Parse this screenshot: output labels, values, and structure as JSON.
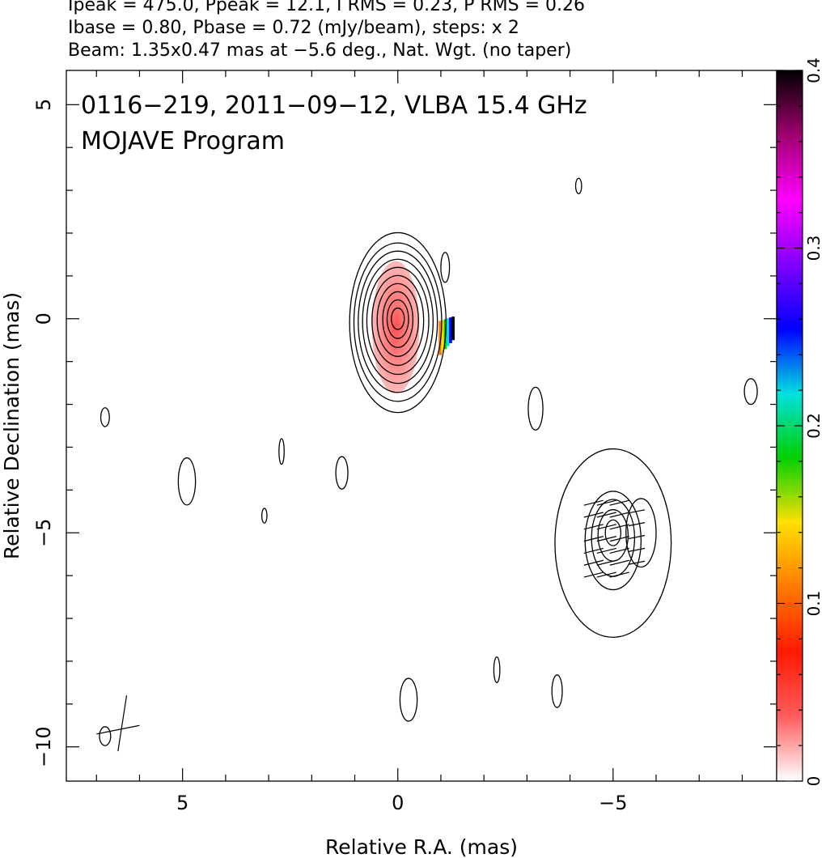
{
  "header": {
    "line1": "Ipeak = 475.0, Ppeak = 12.1, I RMS = 0.23, P RMS = 0.26",
    "line2": "Ibase = 0.80, Pbase = 0.72 (mJy/beam), steps: x 2",
    "line3": "Beam: 1.35x0.47 mas at −5.6 deg., Nat. Wgt. (no taper)"
  },
  "chart_data": {
    "type": "heatmap",
    "title": "0116−219, 2011−09−12, VLBA 15.4 GHz",
    "subtitle": "MOJAVE Program",
    "xlabel": "Relative R.A. (mas)",
    "ylabel": "Relative Declination (mas)",
    "xlim": [
      7.7,
      -8.8
    ],
    "ylim": [
      -10.8,
      5.8
    ],
    "x_ticks": [
      5,
      0,
      -5
    ],
    "x_tick_labels": [
      "5",
      "0",
      "−5"
    ],
    "y_ticks": [
      5,
      0,
      -5,
      -10
    ],
    "y_tick_labels": [
      "5",
      "0",
      "−5",
      "−10"
    ],
    "colorbar": {
      "range": [
        0,
        0.4
      ],
      "ticks": [
        0,
        0.1,
        0.2,
        0.3,
        0.4
      ],
      "tick_labels": [
        "0",
        "0.1",
        "0.2",
        "0.3",
        "0.4"
      ],
      "stops": [
        "#ffffff",
        "#ff5c5c",
        "#ff1a00",
        "#ff7a00",
        "#ffe000",
        "#00d000",
        "#00e0e0",
        "#0000ff",
        "#8000ff",
        "#ff00ff",
        "#a00070",
        "#000000"
      ]
    },
    "contour_color": "#000000",
    "components": [
      {
        "name": "core",
        "x": 0.0,
        "y": 0.0,
        "rx": [
          0.15,
          0.25,
          0.35,
          0.48,
          0.6,
          0.72,
          0.82,
          0.92,
          1.02,
          1.12
        ],
        "ry": [
          0.25,
          0.45,
          0.65,
          0.85,
          1.05,
          1.25,
          1.45,
          1.65,
          1.85,
          2.1
        ],
        "dy": -0.1
      },
      {
        "name": "jet",
        "x": -5.0,
        "y": -5.0,
        "rx": [
          0.18,
          0.35,
          0.5,
          0.65,
          1.35
        ],
        "ry": [
          0.3,
          0.6,
          0.9,
          1.15,
          2.2
        ],
        "dy": -0.3
      }
    ],
    "islands": [
      {
        "x": 4.9,
        "y": -3.8,
        "rx": 0.2,
        "ry": 0.55
      },
      {
        "x": 2.7,
        "y": -3.1,
        "rx": 0.06,
        "ry": 0.3
      },
      {
        "x": 3.1,
        "y": -4.6,
        "rx": 0.06,
        "ry": 0.17
      },
      {
        "x": 1.3,
        "y": -3.6,
        "rx": 0.14,
        "ry": 0.38
      },
      {
        "x": -0.25,
        "y": -8.9,
        "rx": 0.2,
        "ry": 0.5
      },
      {
        "x": -2.3,
        "y": -8.2,
        "rx": 0.07,
        "ry": 0.3
      },
      {
        "x": -3.7,
        "y": -8.7,
        "rx": 0.12,
        "ry": 0.38
      },
      {
        "x": -4.2,
        "y": 3.1,
        "rx": 0.07,
        "ry": 0.18
      },
      {
        "x": -3.2,
        "y": -2.1,
        "rx": 0.17,
        "ry": 0.5
      },
      {
        "x": -8.2,
        "y": -1.7,
        "rx": 0.15,
        "ry": 0.3
      },
      {
        "x": 6.8,
        "y": -2.3,
        "rx": 0.1,
        "ry": 0.22
      },
      {
        "x": 6.8,
        "y": -9.75,
        "rx": 0.13,
        "ry": 0.22
      },
      {
        "x": -1.1,
        "y": 1.2,
        "rx": 0.1,
        "ry": 0.35
      },
      {
        "x": -5.65,
        "y": -5.0,
        "rx": 0.35,
        "ry": 0.8
      }
    ]
  }
}
